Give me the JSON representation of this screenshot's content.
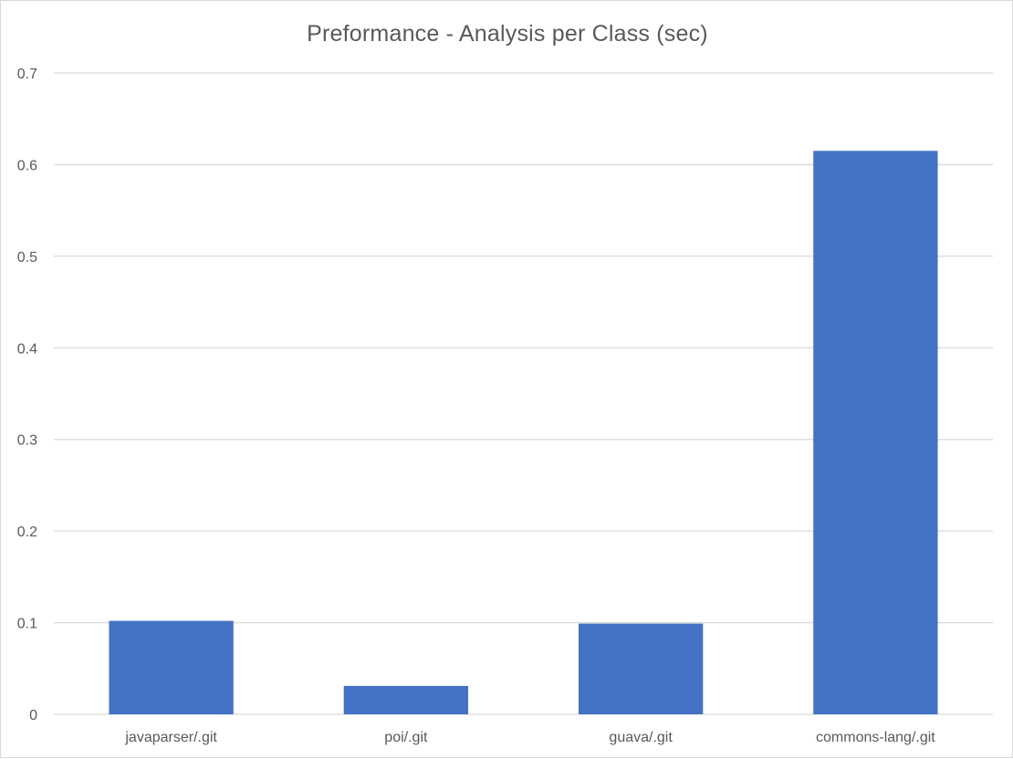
{
  "chart_data": {
    "type": "bar",
    "title": "Preformance - Analysis per Class  (sec)",
    "categories": [
      "javaparser/.git",
      "poi/.git",
      "guava/.git",
      "commons-lang/.git"
    ],
    "values": [
      0.102,
      0.031,
      0.099,
      0.615
    ],
    "ylim": [
      0,
      0.7
    ],
    "yticks": [
      "0",
      "0.1",
      "0.2",
      "0.3",
      "0.4",
      "0.5",
      "0.6",
      "0.7"
    ],
    "xlabel": "",
    "ylabel": "",
    "grid": true,
    "bar_color": "#4472C4",
    "gridline_color": "#d9d9d9",
    "text_color": "#595959"
  }
}
